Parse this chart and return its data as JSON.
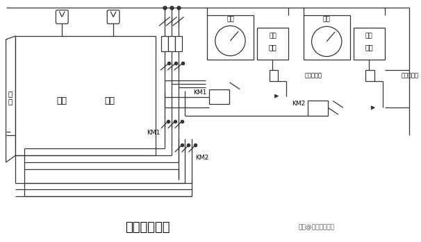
{
  "title": "箱式炉控制图",
  "watermark": "头条@电子工程世界",
  "bg": "#ffffff",
  "lc": "#333333",
  "furnace_door": "炉\n门",
  "front_label": "前区",
  "rear_label": "后区",
  "record_label": "记录",
  "control_label": "控制",
  "meter_label": "仪表",
  "km1_label": "KM1",
  "km2_label": "KM2",
  "relay_label": "中间继电器"
}
